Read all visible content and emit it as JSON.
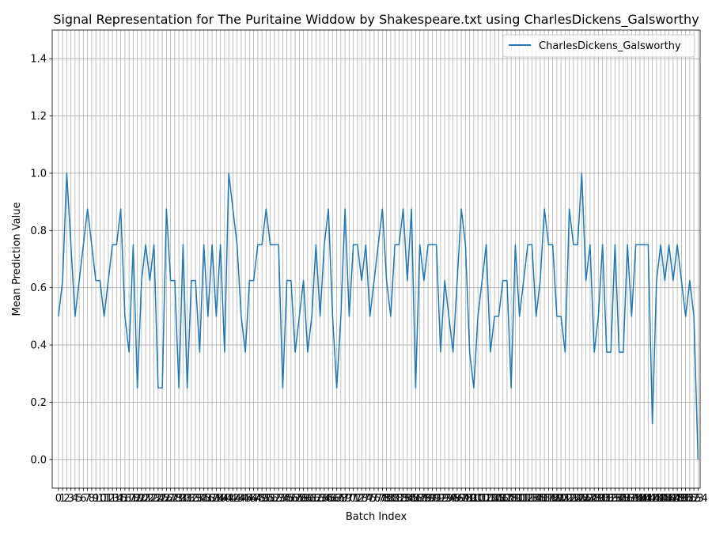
{
  "chart_data": {
    "type": "line",
    "title": "Signal Representation for The Puritaine Widdow by Shakespeare.txt using CharlesDickens_Galsworthy",
    "xlabel": "Batch Index",
    "ylabel": "Mean Prediction Value",
    "ylim": [
      -0.1,
      1.5
    ],
    "xlim": [
      -1.5,
      154.5
    ],
    "yticks": [
      "0.0",
      "0.2",
      "0.4",
      "0.6",
      "0.8",
      "1.0",
      "1.2",
      "1.4"
    ],
    "ytick_values": [
      0.0,
      0.2,
      0.4,
      0.6,
      0.8,
      1.0,
      1.2,
      1.4
    ],
    "grid": true,
    "legend_position": "top-right",
    "colors": {
      "series": "#1f77b4",
      "grid": "#b0b0b0"
    },
    "series": [
      {
        "name": "CharlesDickens_Galsworthy",
        "x_start": 0,
        "values": [
          0.5,
          0.625,
          1.0,
          0.75,
          0.5,
          0.625,
          0.75,
          0.875,
          0.75,
          0.625,
          0.625,
          0.5,
          0.625,
          0.75,
          0.75,
          0.875,
          0.5,
          0.375,
          0.75,
          0.25,
          0.625,
          0.75,
          0.625,
          0.75,
          0.25,
          0.25,
          0.875,
          0.625,
          0.625,
          0.25,
          0.75,
          0.25,
          0.625,
          0.625,
          0.375,
          0.75,
          0.5,
          0.75,
          0.5,
          0.75,
          0.375,
          1.0,
          0.875,
          0.75,
          0.5,
          0.375,
          0.625,
          0.625,
          0.75,
          0.75,
          0.875,
          0.75,
          0.75,
          0.75,
          0.25,
          0.625,
          0.625,
          0.375,
          0.5,
          0.625,
          0.375,
          0.5,
          0.75,
          0.5,
          0.75,
          0.875,
          0.5,
          0.25,
          0.5,
          0.875,
          0.5,
          0.75,
          0.75,
          0.625,
          0.75,
          0.5,
          0.625,
          0.75,
          0.875,
          0.625,
          0.5,
          0.75,
          0.75,
          0.875,
          0.625,
          0.875,
          0.25,
          0.75,
          0.625,
          0.75,
          0.75,
          0.75,
          0.375,
          0.625,
          0.5,
          0.375,
          0.625,
          0.875,
          0.75,
          0.375,
          0.25,
          0.5,
          0.625,
          0.75,
          0.375,
          0.5,
          0.5,
          0.625,
          0.625,
          0.25,
          0.75,
          0.5,
          0.625,
          0.75,
          0.75,
          0.5,
          0.625,
          0.875,
          0.75,
          0.75,
          0.5,
          0.5,
          0.375,
          0.875,
          0.75,
          0.75,
          1.0,
          0.625,
          0.75,
          0.375,
          0.5,
          0.75,
          0.375,
          0.375,
          0.75,
          0.375,
          0.375,
          0.75,
          0.5,
          0.75,
          0.75,
          0.75,
          0.75,
          0.125,
          0.625,
          0.75,
          0.625,
          0.75,
          0.625,
          0.75,
          0.625,
          0.5,
          0.625,
          0.5,
          0.0
        ]
      }
    ]
  }
}
